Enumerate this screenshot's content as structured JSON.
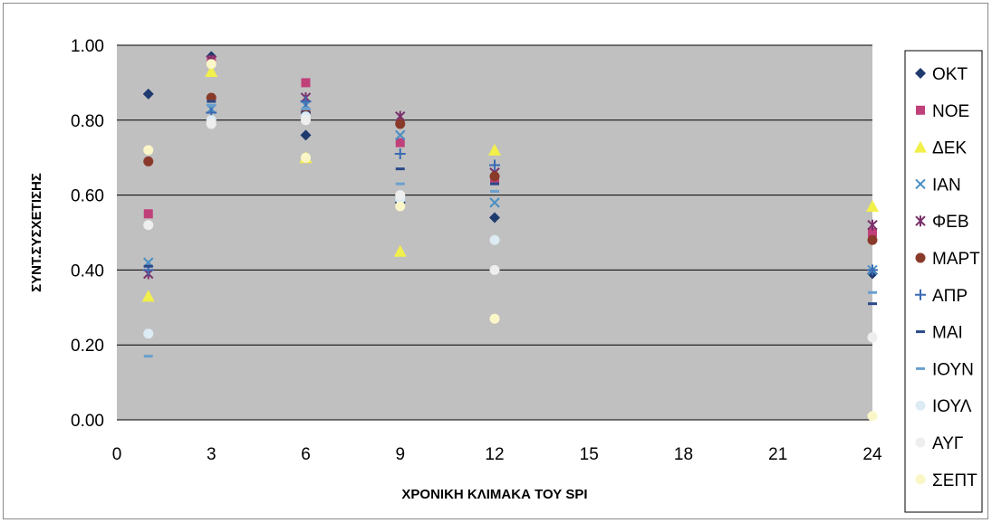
{
  "chart_data": {
    "type": "scatter",
    "title": "",
    "xlabel": "ΧΡΟΝΙΚΗ ΚΛΙΜΑΚΑ ΤΟΥ SPI",
    "ylabel": "ΣΥΝΤ.ΣΥΣΧΕΤΙΣΗΣ",
    "xlim": [
      0,
      24
    ],
    "ylim": [
      0,
      1
    ],
    "x_ticks": [
      "0",
      "3",
      "6",
      "9",
      "12",
      "15",
      "18",
      "21",
      "24"
    ],
    "y_ticks": [
      "0.00",
      "0.20",
      "0.40",
      "0.60",
      "0.80",
      "1.00"
    ],
    "grid": "horizontal",
    "legend_position": "right",
    "x": [
      1,
      3,
      6,
      9,
      12,
      24
    ],
    "series": [
      {
        "name": "ΟΚΤ",
        "marker": "diamond",
        "color": "#1f3a6e",
        "values": [
          0.87,
          0.97,
          0.76,
          0.58,
          0.54,
          0.39
        ]
      },
      {
        "name": "ΝΟΕ",
        "marker": "square",
        "color": "#c0407a",
        "values": [
          0.55,
          0.96,
          0.9,
          0.74,
          0.64,
          0.5
        ]
      },
      {
        "name": "ΔΕΚ",
        "marker": "triangle",
        "color": "#f2ef4a",
        "values": [
          0.33,
          0.93,
          0.7,
          0.45,
          0.72,
          0.57
        ]
      },
      {
        "name": "ΙΑΝ",
        "marker": "x",
        "color": "#4a8fc4",
        "values": [
          0.42,
          0.83,
          0.84,
          0.76,
          0.58,
          0.4
        ]
      },
      {
        "name": "ΦΕΒ",
        "marker": "asterisk",
        "color": "#7a2f6a",
        "values": [
          0.39,
          0.96,
          0.86,
          0.81,
          0.66,
          0.52
        ]
      },
      {
        "name": "ΜΑΡΤ",
        "marker": "circle",
        "color": "#8a3a2a",
        "values": [
          0.69,
          0.86,
          0.82,
          0.79,
          0.65,
          0.48
        ]
      },
      {
        "name": "ΑΠΡ",
        "marker": "plus",
        "color": "#3a6ab4",
        "values": [
          0.4,
          0.82,
          0.85,
          0.71,
          0.68,
          0.4
        ]
      },
      {
        "name": "ΜΑΙ",
        "marker": "dash",
        "color": "#2a4a8a",
        "values": [
          0.41,
          0.85,
          0.82,
          0.67,
          0.63,
          0.31
        ]
      },
      {
        "name": "ΙΟΥΝ",
        "marker": "dash",
        "color": "#6aa0d0",
        "values": [
          0.17,
          0.84,
          0.83,
          0.63,
          0.61,
          0.34
        ]
      },
      {
        "name": "ΙΟΥΛ",
        "marker": "circle",
        "color": "#ddebf4",
        "values": [
          0.23,
          0.8,
          0.81,
          0.59,
          0.48,
          0.22
        ]
      },
      {
        "name": "ΑΥΓ",
        "marker": "circle",
        "color": "#eeeeee",
        "values": [
          0.52,
          0.79,
          0.8,
          0.6,
          0.4,
          0.22
        ]
      },
      {
        "name": "ΣΕΠΤ",
        "marker": "circle",
        "color": "#fbf6c8",
        "values": [
          0.72,
          0.95,
          0.7,
          0.57,
          0.27,
          0.01
        ]
      }
    ]
  }
}
